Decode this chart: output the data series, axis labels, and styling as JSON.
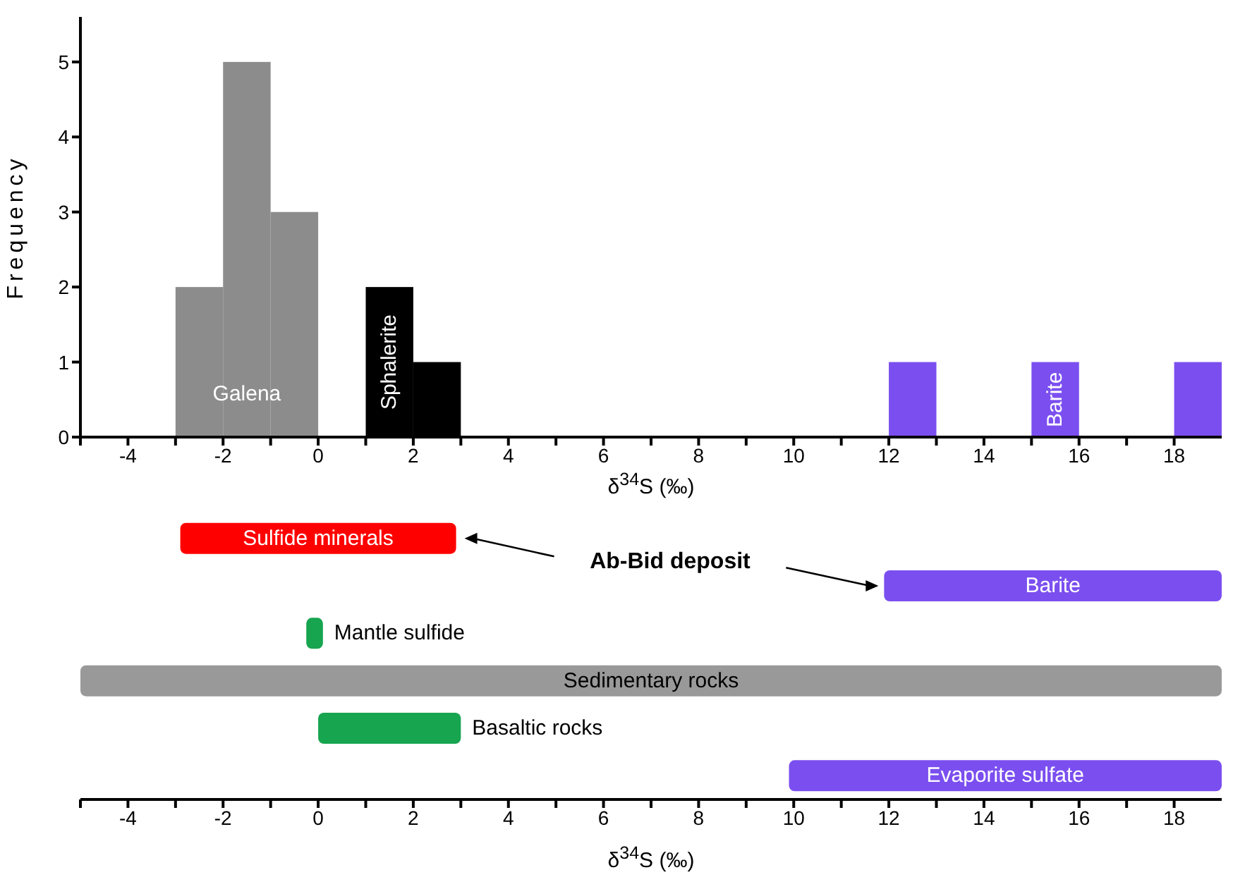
{
  "chart_data": [
    {
      "type": "histogram",
      "xlabel": "δ$^{34}$S (‰)",
      "ylabel": "Frequency",
      "bins": [
        -3,
        -2,
        -1,
        0,
        1,
        2,
        3,
        4,
        5,
        6,
        7,
        8,
        9,
        10,
        11,
        12,
        13,
        14,
        15,
        16,
        17,
        18,
        19
      ],
      "series": [
        {
          "name": "Galena",
          "color": "#8c8c8c",
          "values": [
            2,
            5,
            3,
            null,
            null,
            null,
            null,
            null,
            null,
            null,
            null,
            null,
            null,
            null,
            null,
            null,
            null,
            null,
            null,
            null,
            null,
            null
          ]
        },
        {
          "name": "Sphalerite",
          "color": "#000000",
          "values": [
            null,
            null,
            null,
            null,
            2,
            1,
            null,
            null,
            null,
            null,
            null,
            null,
            null,
            null,
            null,
            null,
            null,
            null,
            null,
            null,
            null,
            null
          ]
        },
        {
          "name": "Barite",
          "color": "#7b4fef",
          "values": [
            null,
            null,
            null,
            null,
            null,
            null,
            null,
            null,
            null,
            null,
            null,
            null,
            null,
            null,
            null,
            1,
            null,
            null,
            1,
            null,
            null,
            1
          ]
        }
      ],
      "xlim": [
        -5,
        19
      ],
      "ylim": [
        0,
        5.6
      ],
      "xticks": [
        {
          "value": -5,
          "label": null
        },
        -4,
        {
          "value": -3,
          "label": null
        },
        -2,
        {
          "value": -1,
          "label": null
        },
        0,
        {
          "value": 1,
          "label": null
        },
        2,
        {
          "value": 3,
          "label": null
        },
        4,
        {
          "value": 5,
          "label": null
        },
        6,
        {
          "value": 7,
          "label": null
        },
        8,
        {
          "value": 9,
          "label": null
        },
        10,
        {
          "value": 11,
          "label": null
        },
        12,
        {
          "value": 13,
          "label": null
        },
        14,
        {
          "value": 15,
          "label": null
        },
        16,
        {
          "value": 17,
          "label": null
        },
        18
      ],
      "yticks": [
        0,
        1,
        2,
        3,
        4,
        5
      ]
    },
    {
      "type": "bar",
      "orientation": "horizontal",
      "xlabel": "δ$^{34}$S (‰)",
      "categories": [
        "Sulfide minerals",
        "Barite",
        "Mantle sulfide",
        "Sedimentary rocks",
        "Basaltic rocks",
        "Evaporite sulfate"
      ],
      "values": [
        5.8,
        7.1,
        0.35,
        24,
        3,
        9.1
      ],
      "base": [
        -2.9,
        11.9,
        -0.25,
        -5,
        0,
        9.9
      ],
      "colors": [
        "#ff0000",
        "#7b4fef",
        "#17a550",
        "#999999",
        "#17a550",
        "#7b4fef"
      ],
      "annotations": [
        "Ab-Bid deposit"
      ],
      "xlim": [
        -5,
        19
      ],
      "xticks": [
        {
          "value": -5,
          "label": null
        },
        -4,
        {
          "value": -3,
          "label": null
        },
        -2,
        {
          "value": -1,
          "label": null
        },
        0,
        {
          "value": 1,
          "label": null
        },
        2,
        {
          "value": 3,
          "label": null
        },
        4,
        {
          "value": 5,
          "label": null
        },
        6,
        {
          "value": 7,
          "label": null
        },
        8,
        {
          "value": 9,
          "label": null
        },
        10,
        {
          "value": 11,
          "label": null
        },
        12,
        {
          "value": 13,
          "label": null
        },
        14,
        {
          "value": 15,
          "label": null
        },
        16,
        {
          "value": 17,
          "label": null
        },
        18
      ]
    }
  ]
}
